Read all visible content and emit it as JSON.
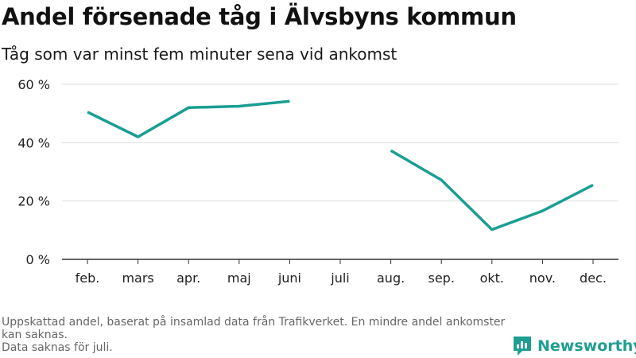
{
  "header": {
    "title": "Andel försenade tåg i Älvsbyns kommun",
    "subtitle": "Tåg som var minst fem minuter sena vid ankomst"
  },
  "chart_data": {
    "type": "line",
    "categories": [
      "feb.",
      "mars",
      "apr.",
      "maj",
      "juni",
      "juli",
      "aug.",
      "sep.",
      "okt.",
      "nov.",
      "dec."
    ],
    "series": [
      {
        "values": [
          50.5,
          42,
          52,
          52.5,
          54.2,
          null,
          37.3,
          27.2,
          10.2,
          16.6,
          25.5
        ]
      }
    ],
    "y_ticks": [
      0,
      20,
      40,
      60
    ],
    "y_tick_suffix": " %",
    "ylim": [
      0,
      60
    ],
    "grid": true,
    "line_color": "#1a9e92"
  },
  "footnote": {
    "lines": [
      "Uppskattad andel, baserat på insamlad data från Trafikverket. En mindre andel ankomster kan saknas.",
      "Data saknas för juli."
    ]
  },
  "brand": {
    "name": "Newsworthy",
    "color": "#1f9e92"
  }
}
